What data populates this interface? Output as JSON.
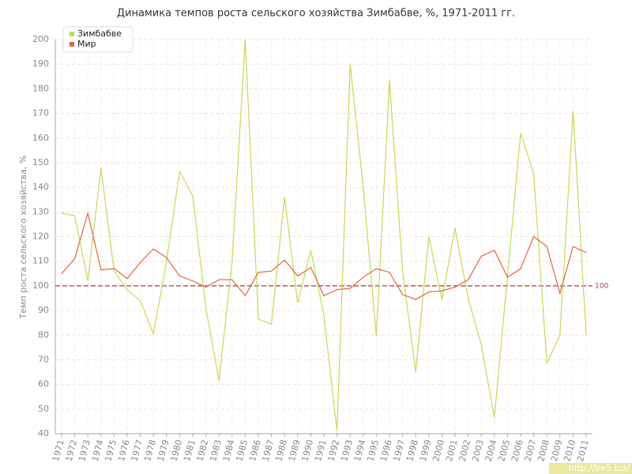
{
  "chart_data": {
    "type": "line",
    "title": "Динамика темпов роста сельского хозяйства Зимбабве, %, 1971-2011 гг.",
    "y_label": "Темп роста сельского хозяйства, %",
    "categories": [
      "1971",
      "1972",
      "1973",
      "1974",
      "1975",
      "1976",
      "1977",
      "1978",
      "1979",
      "1980",
      "1981",
      "1982",
      "1983",
      "1984",
      "1985",
      "1986",
      "1987",
      "1988",
      "1989",
      "1990",
      "1991",
      "1992",
      "1993",
      "1994",
      "1995",
      "1996",
      "1997",
      "1998",
      "1999",
      "2000",
      "2001",
      "2002",
      "2003",
      "2004",
      "2005",
      "2006",
      "2007",
      "2008",
      "2009",
      "2010",
      "2011"
    ],
    "series": [
      {
        "name": "Зимбабве",
        "color": "#c2dc52",
        "values": [
          129.5,
          128.5,
          102,
          148,
          106,
          98.5,
          94,
          80.5,
          110,
          146.5,
          136.5,
          91,
          61.5,
          110,
          200,
          86.5,
          84.5,
          136,
          93,
          114.5,
          88,
          41,
          190,
          140,
          79.5,
          183.5,
          106,
          65,
          120,
          94.5,
          123.5,
          95,
          76,
          46.5,
          104,
          162,
          145.5,
          68.5,
          80,
          171,
          80
        ]
      },
      {
        "name": "Мир",
        "color": "#e0683c",
        "values": [
          105,
          111,
          129.5,
          106.5,
          107,
          103,
          109.5,
          115,
          111.5,
          104,
          102,
          99.5,
          102.5,
          102.5,
          96,
          105.5,
          106,
          110.5,
          104,
          107.5,
          96,
          98.5,
          99,
          103.5,
          107,
          105.5,
          96.5,
          94.5,
          97.5,
          98,
          99.5,
          102.5,
          112,
          114.5,
          103.5,
          107,
          120,
          116,
          97,
          116,
          113.5
        ]
      }
    ],
    "reference_line": 100,
    "ylim": [
      40,
      200
    ],
    "yticks": [
      40,
      50,
      60,
      70,
      80,
      90,
      100,
      110,
      120,
      130,
      140,
      150,
      160,
      170,
      180,
      190,
      200
    ],
    "grid": true,
    "legend": "top-left",
    "watermark": "http://be5.biz/"
  }
}
